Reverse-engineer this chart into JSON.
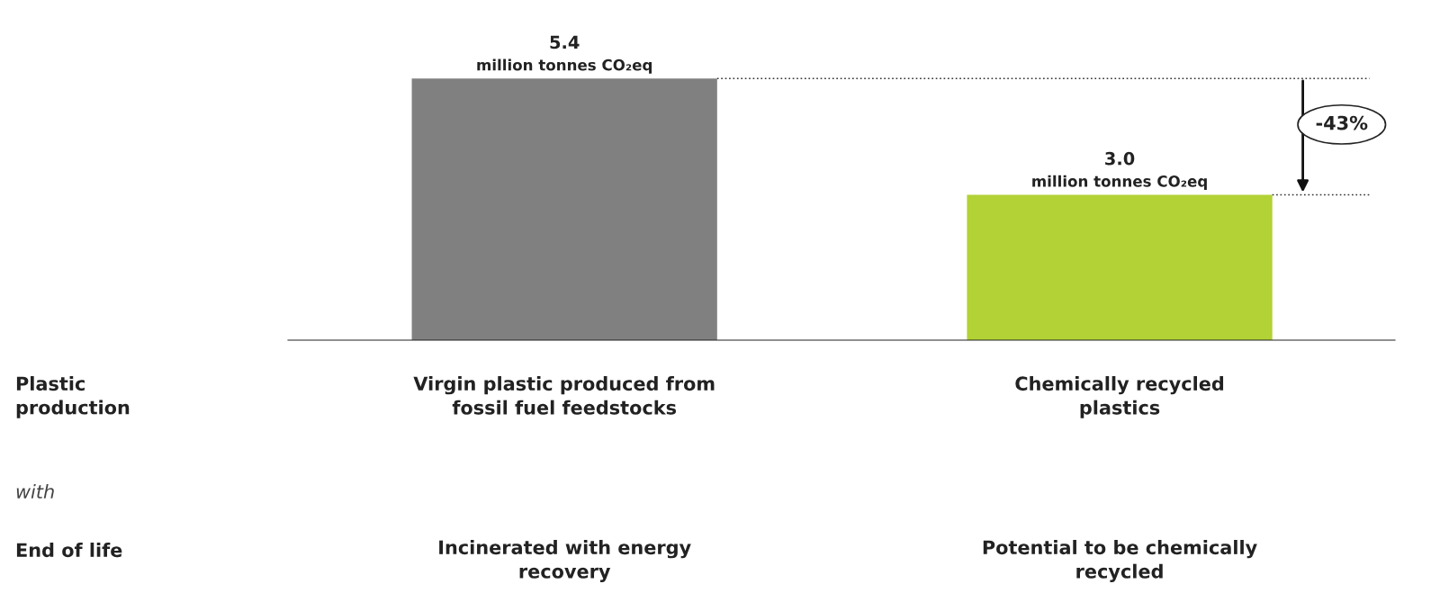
{
  "chart_data": {
    "type": "bar",
    "categories": [
      "Virgin plastic produced from\nfossil fuel feedstocks",
      "Chemically recycled\nplastics"
    ],
    "values": [
      5.4,
      3.0
    ],
    "colors": [
      "#808080",
      "#b2d235"
    ],
    "value_labels": [
      "5.4",
      "3.0"
    ],
    "ref_lines": [
      {
        "axis": "y",
        "value": 5.4,
        "line_style": "dotted",
        "color": "#333333"
      },
      {
        "axis": "y",
        "value": 3.0,
        "line_style": "dotted",
        "color": "#333333"
      }
    ],
    "annotations": [
      "Plastic\nproduction",
      "with",
      "End of life",
      "Incinerated with energy\nrecovery",
      "Potential to be chemically\nrecycled",
      "-43%",
      {
        "text": "million tonnes CO₂eq",
        "x": "Virgin plastic produced from\nfossil fuel feedstocks",
        "y": 5.4
      },
      {
        "text": "million tonnes CO₂eq",
        "x": "Chemically recycled\nplastics",
        "y": 3.0
      }
    ]
  }
}
